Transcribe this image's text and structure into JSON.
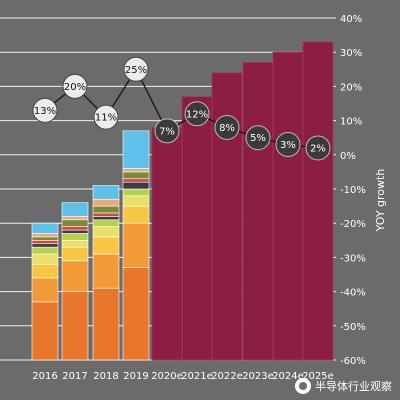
{
  "chart_data": {
    "type": "bar",
    "categories": [
      "2016",
      "2017",
      "2018",
      "2019",
      "2020e",
      "2021e",
      "2022e",
      "2023e",
      "2024e",
      "2025e"
    ],
    "stacked_segments_2016_2019": [
      {
        "color": "#e8762c",
        "values": [
          -43,
          -40,
          -39,
          -33
        ]
      },
      {
        "color": "#f29a35",
        "values": [
          -36,
          -31,
          -29,
          -20
        ]
      },
      {
        "color": "#f7c744",
        "values": [
          -32,
          -27,
          -24,
          -15
        ]
      },
      {
        "color": "#e8e06a",
        "values": [
          -29,
          -25,
          -21,
          -12
        ]
      },
      {
        "color": "#b9cf4e",
        "values": [
          -27,
          -23,
          -19,
          -10
        ]
      },
      {
        "color": "#3b3b4b",
        "values": [
          -26,
          -22,
          -18,
          -8
        ]
      },
      {
        "color": "#d04a3c",
        "values": [
          -25,
          -21,
          -17,
          -7
        ]
      },
      {
        "color": "#7a8a3b",
        "values": [
          -24,
          -19,
          -15,
          -5
        ]
      },
      {
        "color": "#e9a97a",
        "values": [
          -23,
          -18,
          -13,
          -4
        ]
      },
      {
        "color": "#5fc0ea",
        "values": [
          -20,
          -14,
          -9,
          7
        ]
      }
    ],
    "forecast_bars": {
      "color": "#8b1e42",
      "categories": [
        "2020e",
        "2021e",
        "2022e",
        "2023e",
        "2024e",
        "2025e"
      ],
      "values": [
        8,
        17,
        24,
        27,
        30,
        33
      ]
    },
    "growth_labels": [
      "13%",
      "20%",
      "11%",
      "25%",
      "7%",
      "12%",
      "8%",
      "5%",
      "3%",
      "2%"
    ],
    "growth_values": [
      13,
      20,
      11,
      25,
      7,
      12,
      8,
      5,
      3,
      2
    ],
    "y_axis": {
      "label": "YOY growth",
      "ylim": [
        -60,
        40
      ],
      "ticks": [
        40,
        30,
        20,
        10,
        0,
        -10,
        -20,
        -30,
        -40,
        -50,
        -60
      ],
      "tick_labels": [
        "40%",
        "30%",
        "20%",
        "10%",
        "0%",
        "-10%",
        "-20%",
        "-30%",
        "-40%",
        "-50%",
        "-60%"
      ]
    },
    "grid": true
  },
  "watermark": {
    "text": "半导体行业观察",
    "icon": "wechat-logo-icon"
  }
}
